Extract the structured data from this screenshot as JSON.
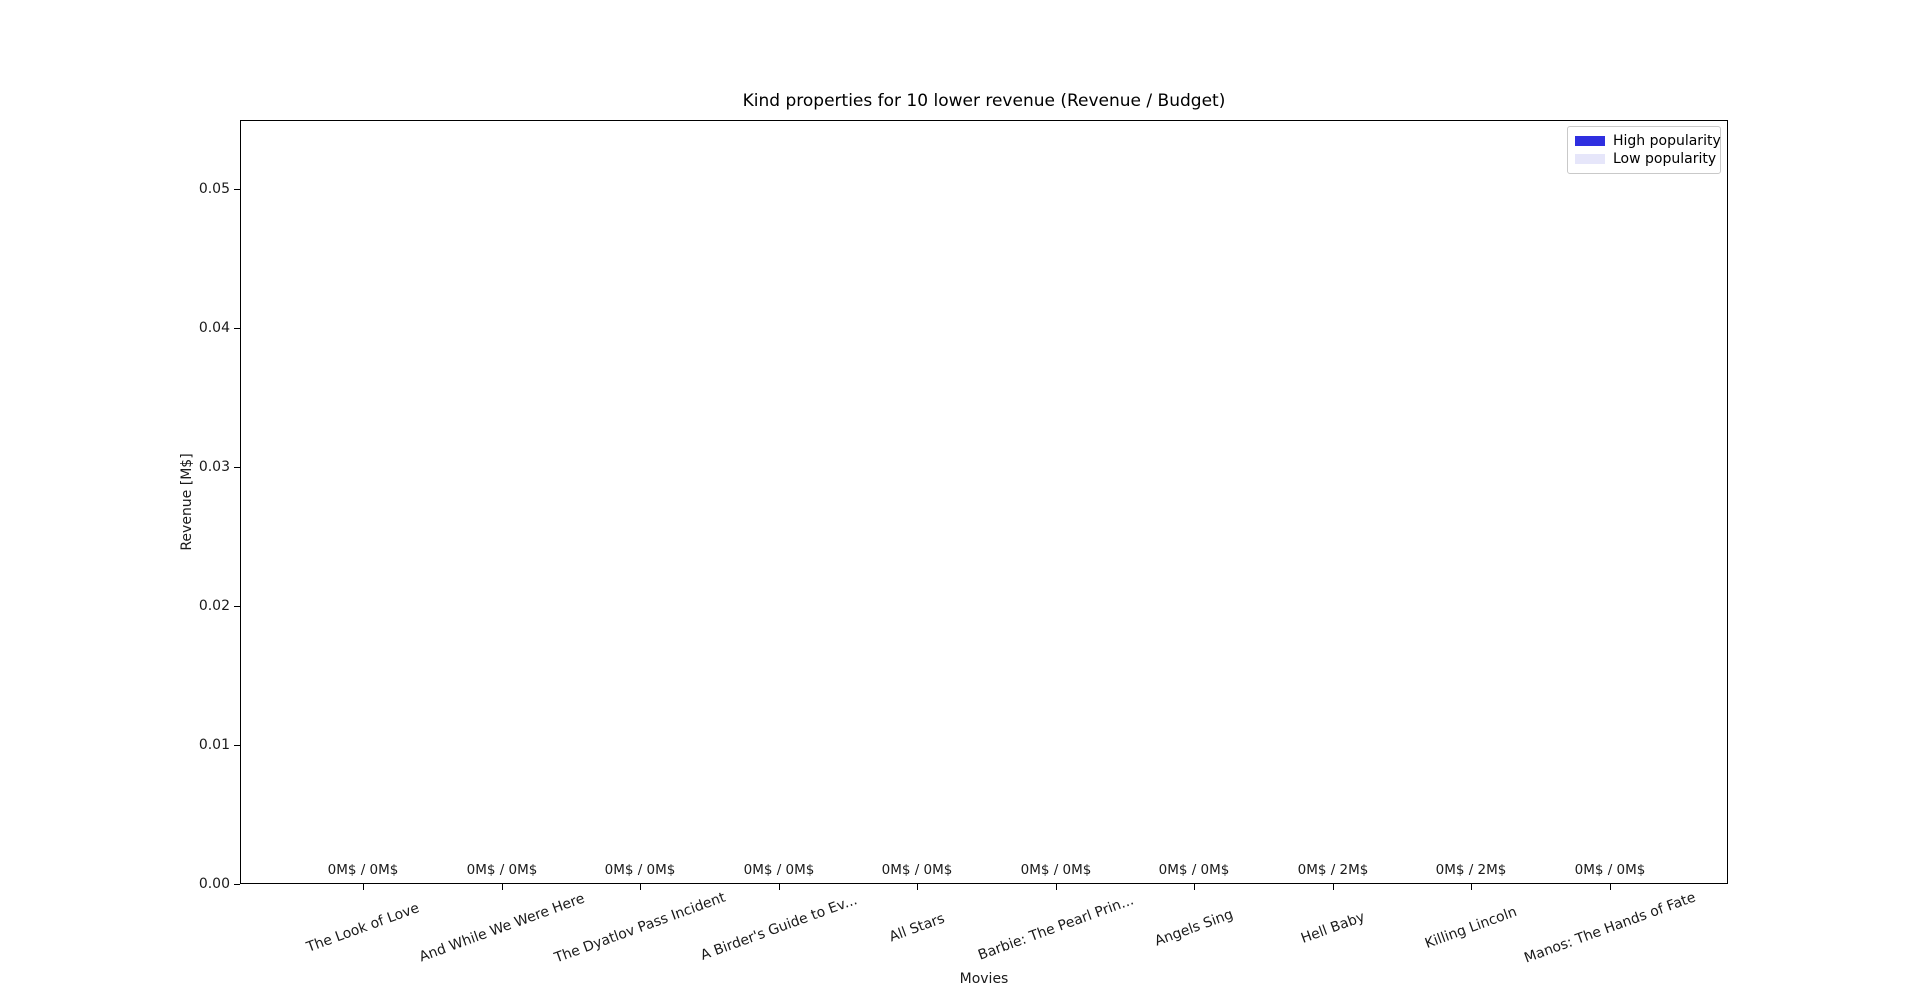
{
  "figure": {
    "title": "Kind properties for 10 lower revenue (Revenue / Budget)",
    "xlabel": "Movies",
    "ylabel": "Revenue [M$]"
  },
  "legend": {
    "position": "top-right",
    "items": [
      {
        "name": "high-popularity",
        "label": "High popularity",
        "color": "#2f2fe0"
      },
      {
        "name": "low-popularity",
        "label": "Low popularity",
        "color": "#e6e6fa"
      }
    ]
  },
  "chart_data": {
    "type": "bar",
    "title": "Kind properties for 10 lower revenue (Revenue / Budget)",
    "xlabel": "Movies",
    "ylabel": "Revenue [M$]",
    "categories": [
      "The Look of Love",
      "And While We Were Here",
      "The Dyatlov Pass Incident",
      "A Birder's Guide to Ev...",
      "All Stars",
      "Barbie: The Pearl Prin...",
      "Angels Sing",
      "Hell Baby",
      "Killing Lincoln",
      "Manos: The Hands of Fate"
    ],
    "values": [
      0,
      0,
      0,
      0,
      0,
      0,
      0,
      0,
      0,
      0
    ],
    "revenue_m": [
      0,
      0,
      0,
      0,
      0,
      0,
      0,
      0,
      0,
      0
    ],
    "budget_m": [
      0,
      0,
      0,
      0,
      0,
      0,
      0,
      2,
      2,
      0
    ],
    "bar_labels": [
      "0M$ / 0M$",
      "0M$ / 0M$",
      "0M$ / 0M$",
      "0M$ / 0M$",
      "0M$ / 0M$",
      "0M$ / 0M$",
      "0M$ / 0M$",
      "0M$ / 2M$",
      "0M$ / 2M$",
      "0M$ / 0M$"
    ],
    "yticks": [
      "0.00",
      "0.01",
      "0.02",
      "0.03",
      "0.04",
      "0.05"
    ],
    "ytick_values": [
      0.0,
      0.01,
      0.02,
      0.03,
      0.04,
      0.05
    ],
    "ylim": [
      0,
      0.055
    ],
    "xtick_rotation_deg": 20,
    "grid": false,
    "legend_entries": [
      "High popularity",
      "Low popularity"
    ]
  }
}
